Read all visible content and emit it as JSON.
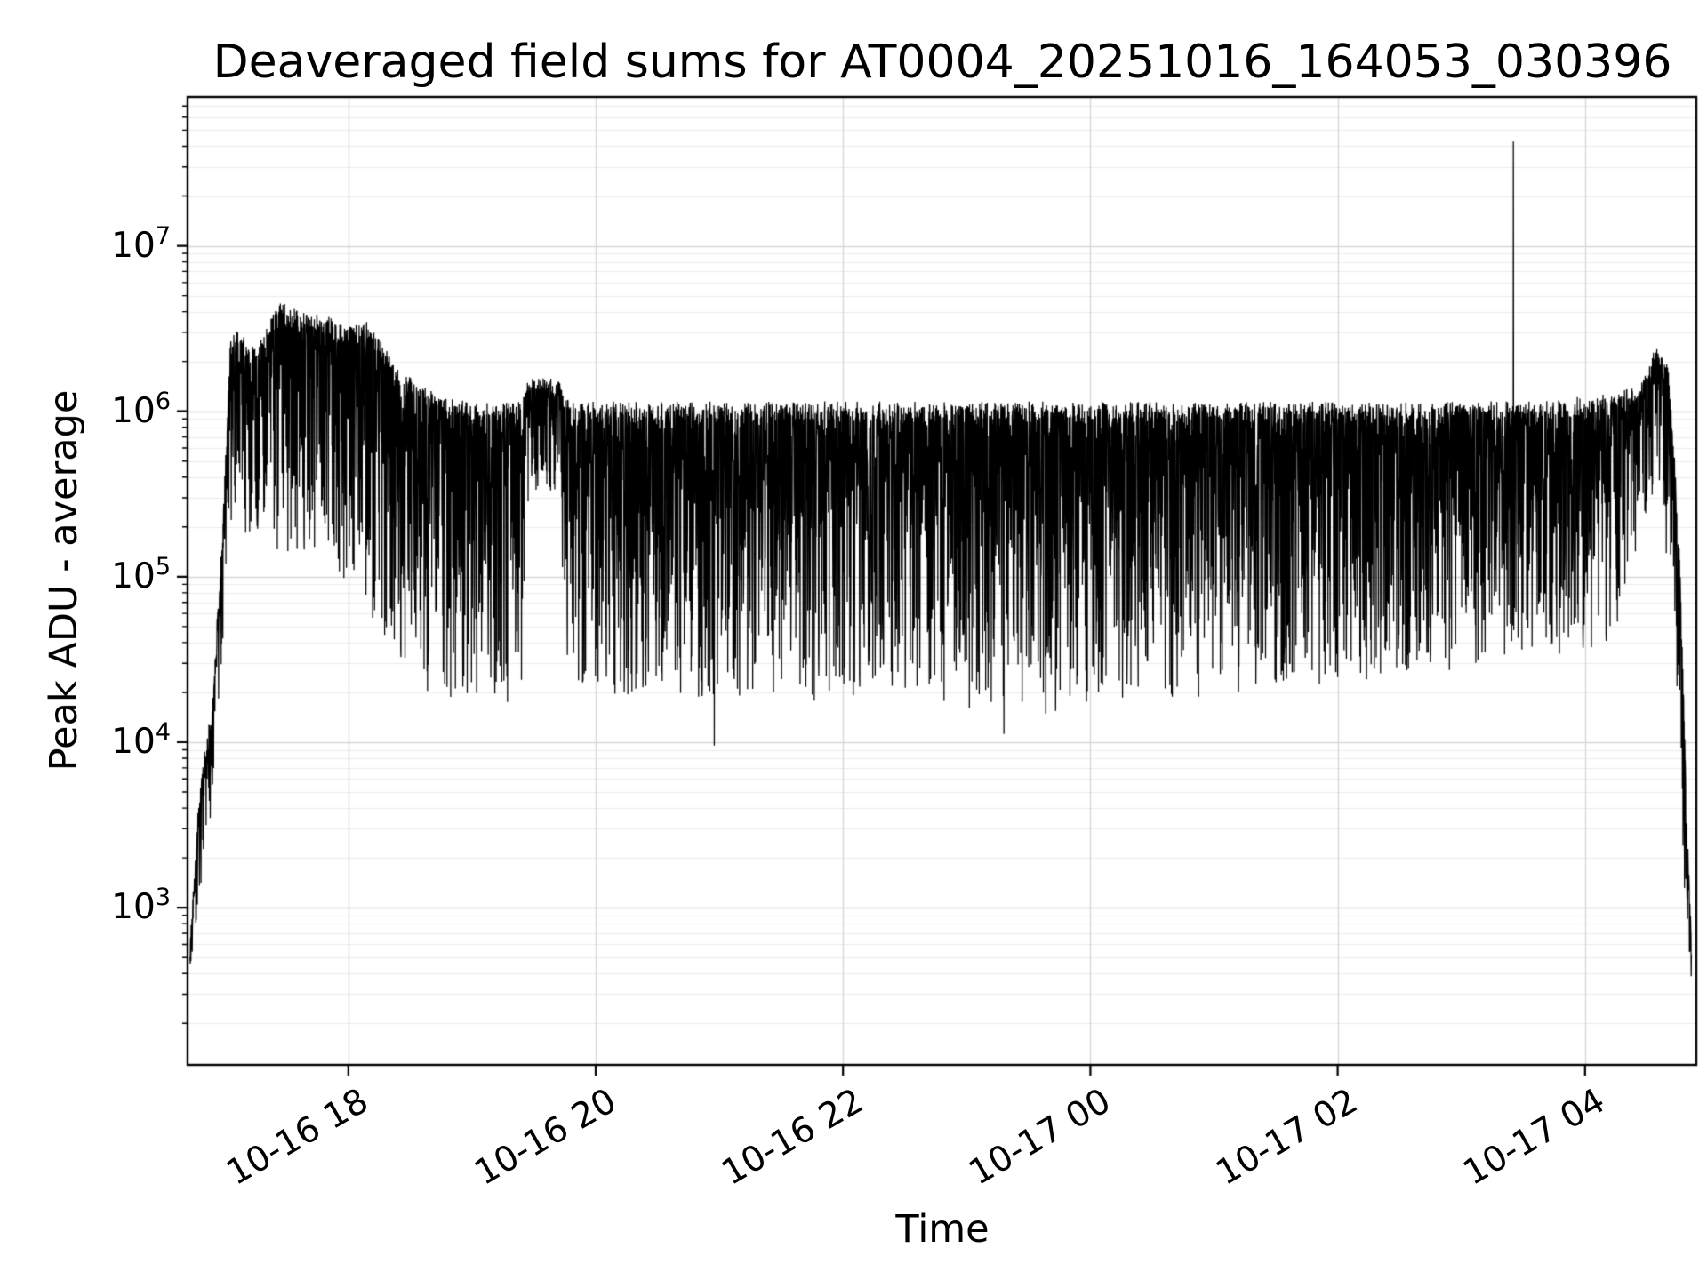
{
  "chart_data": {
    "type": "line",
    "title": "Deaveraged field sums for AT0004_20251016_164053_030396",
    "xlabel": "Time",
    "ylabel": "Peak ADU - average",
    "y_scale": "log",
    "ylim_log10": [
      2.05,
      7.9
    ],
    "x_range_hours": [
      16.7,
      28.9
    ],
    "x_ticks": [
      {
        "hour": 18,
        "label": "10-16 18"
      },
      {
        "hour": 20,
        "label": "10-16 20"
      },
      {
        "hour": 22,
        "label": "10-16 22"
      },
      {
        "hour": 24,
        "label": "10-17 00"
      },
      {
        "hour": 26,
        "label": "10-17 02"
      },
      {
        "hour": 28,
        "label": "10-17 04"
      }
    ],
    "y_ticks": [
      {
        "base": "10",
        "exp": 3
      },
      {
        "base": "10",
        "exp": 4
      },
      {
        "base": "10",
        "exp": 5
      },
      {
        "base": "10",
        "exp": 6
      },
      {
        "base": "10",
        "exp": 7
      }
    ],
    "line_color": "#000000",
    "background": "#ffffff",
    "grid_major_color": "#d7d7d7",
    "grid_minor_color": "#ebebeb",
    "axis_color": "#000000",
    "legend": "none",
    "grid": "on",
    "synthesis": {
      "seed": 42,
      "n_points": 7000,
      "t_start": 16.72,
      "t_end": 28.86,
      "dip_power": 3,
      "top_jitter": 0.12,
      "envelope": [
        [
          16.72,
          2.55,
          2.75
        ],
        [
          16.8,
          3.1,
          3.7
        ],
        [
          16.9,
          3.6,
          4.2
        ],
        [
          16.98,
          4.5,
          5.2
        ],
        [
          17.05,
          5.3,
          6.45
        ],
        [
          17.25,
          5.3,
          6.35
        ],
        [
          17.45,
          5.1,
          6.6
        ],
        [
          17.75,
          5.1,
          6.55
        ],
        [
          18.0,
          5.0,
          6.45
        ],
        [
          18.15,
          4.8,
          6.5
        ],
        [
          18.4,
          4.5,
          6.2
        ],
        [
          18.7,
          4.3,
          6.05
        ],
        [
          19.1,
          4.25,
          6.0
        ],
        [
          19.4,
          4.3,
          6.0
        ],
        [
          19.46,
          5.45,
          6.15
        ],
        [
          19.7,
          5.45,
          6.15
        ],
        [
          19.78,
          4.3,
          6.0
        ],
        [
          20.3,
          4.25,
          6.0
        ],
        [
          21.0,
          4.3,
          6.0
        ],
        [
          21.6,
          4.2,
          6.0
        ],
        [
          22.2,
          4.3,
          6.0
        ],
        [
          23.0,
          4.25,
          6.0
        ],
        [
          23.8,
          4.2,
          6.0
        ],
        [
          24.6,
          4.3,
          6.0
        ],
        [
          25.4,
          4.3,
          6.0
        ],
        [
          26.2,
          4.4,
          6.0
        ],
        [
          26.9,
          4.45,
          6.0
        ],
        [
          27.6,
          4.5,
          6.0
        ],
        [
          28.2,
          4.6,
          6.05
        ],
        [
          28.45,
          5.2,
          6.1
        ],
        [
          28.58,
          5.6,
          6.35
        ],
        [
          28.68,
          5.0,
          6.2
        ],
        [
          28.76,
          3.8,
          5.2
        ],
        [
          28.82,
          2.9,
          3.6
        ],
        [
          28.86,
          2.55,
          2.8
        ]
      ],
      "spikes": [
        {
          "t": 27.42,
          "log10": 7.63
        }
      ],
      "dips": [
        {
          "t": 20.96,
          "log10": 3.98
        },
        {
          "t": 23.3,
          "log10": 4.05
        }
      ]
    }
  }
}
